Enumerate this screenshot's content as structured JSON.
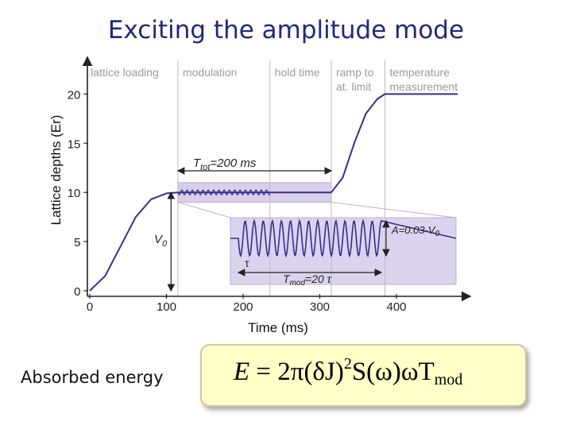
{
  "slide": {
    "title": "Exciting the amplitude mode",
    "absorbed_label": "Absorbed energy",
    "formula": {
      "lhs": "E",
      "eq": " = 2π(δJ)",
      "sq": "2",
      "mid": "S(ω)ωT",
      "sub": "mod"
    }
  },
  "chart_data": {
    "type": "line",
    "xlabel": "Time (ms)",
    "ylabel": "Lattice depths (Er)",
    "xlim": [
      -5,
      480
    ],
    "ylim": [
      0,
      21
    ],
    "x_ticks": [
      0,
      100,
      200,
      300,
      400
    ],
    "y_ticks": [
      0,
      5,
      10,
      15,
      20
    ],
    "phases": [
      {
        "label": "lattice loading",
        "start": -5,
        "end": 115
      },
      {
        "label": "modulation",
        "start": 115,
        "end": 235
      },
      {
        "label": "hold time",
        "start": 235,
        "end": 315
      },
      {
        "label": "ramp to at. limit",
        "start": 315,
        "end": 385
      },
      {
        "label": "temperature measurement",
        "start": 385,
        "end": 480
      }
    ],
    "series": [
      {
        "x": [
          0,
          20,
          40,
          60,
          80,
          100,
          115,
          235,
          315,
          330,
          345,
          360,
          375,
          385,
          480
        ],
        "values": [
          0,
          1.5,
          4.5,
          7.5,
          9.3,
          9.9,
          10,
          10,
          10,
          11.5,
          15,
          18,
          19.5,
          20,
          20
        ]
      }
    ],
    "annotations": {
      "ttot": "T",
      "ttot_sub": "tot",
      "ttot_value": "=200 ms",
      "v0": "V",
      "v0_sub": "0",
      "amp": "A=0.03·V",
      "amp_sub": "0",
      "tau": "τ",
      "tmod": "T",
      "tmod_sub": "mod",
      "tmod_value": "=20 τ"
    }
  }
}
